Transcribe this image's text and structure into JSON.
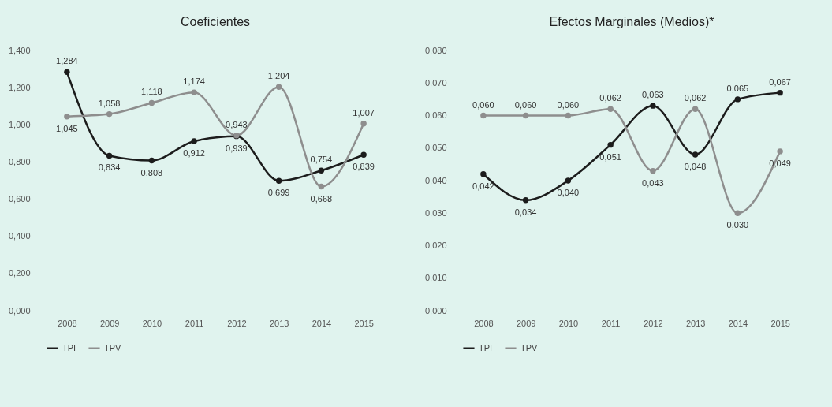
{
  "chart_data": [
    {
      "type": "line",
      "title": "Coeficientes",
      "categories": [
        "2008",
        "2009",
        "2010",
        "2011",
        "2012",
        "2013",
        "2014",
        "2015"
      ],
      "series": [
        {
          "name": "TPI",
          "color": "#1c1c1c",
          "values": [
            1.284,
            0.834,
            0.808,
            0.912,
            0.939,
            0.699,
            0.754,
            0.839
          ],
          "value_labels": [
            "1,284",
            "0,834",
            "0,808",
            "0,912",
            "0,939",
            "0,699",
            "0,754",
            "0,839"
          ]
        },
        {
          "name": "TPV",
          "color": "#8e8e8e",
          "values": [
            1.045,
            1.058,
            1.118,
            1.174,
            0.943,
            1.204,
            0.668,
            1.007
          ],
          "value_labels": [
            "1,045",
            "1,058",
            "1,118",
            "1,174",
            "0,943",
            "1,204",
            "0,668",
            "1,007"
          ]
        }
      ],
      "ylim": [
        0,
        1.4
      ],
      "yticks": [
        {
          "value": 0,
          "label": "0,000"
        },
        {
          "value": 0.2,
          "label": "0,200"
        },
        {
          "value": 0.4,
          "label": "0,400"
        },
        {
          "value": 0.6,
          "label": "0,600"
        },
        {
          "value": 0.8,
          "label": "0,800"
        },
        {
          "value": 1,
          "label": "1,000"
        },
        {
          "value": 1.2,
          "label": "1,200"
        },
        {
          "value": 1.4,
          "label": "1,400"
        }
      ],
      "legend": "bottom",
      "marker": "circle",
      "grid": false
    },
    {
      "type": "line",
      "title": "Efectos Marginales (Medios)*",
      "categories": [
        "2008",
        "2009",
        "2010",
        "2011",
        "2012",
        "2013",
        "2014",
        "2015"
      ],
      "series": [
        {
          "name": "TPI",
          "color": "#1c1c1c",
          "values": [
            0.042,
            0.034,
            0.04,
            0.051,
            0.063,
            0.048,
            0.065,
            0.067
          ],
          "value_labels": [
            "0,042",
            "0,034",
            "0,040",
            "0,051",
            "0,063",
            "0,048",
            "0,065",
            "0,067"
          ]
        },
        {
          "name": "TPV",
          "color": "#8e8e8e",
          "values": [
            0.06,
            0.06,
            0.06,
            0.062,
            0.043,
            0.062,
            0.03,
            0.049
          ],
          "value_labels": [
            "0,060",
            "0,060",
            "0,060",
            "0,062",
            "0,043",
            "0,062",
            "0,030",
            "0,049"
          ]
        }
      ],
      "ylim": [
        0,
        0.08
      ],
      "yticks": [
        {
          "value": 0,
          "label": "0,000"
        },
        {
          "value": 0.01,
          "label": "0,010"
        },
        {
          "value": 0.02,
          "label": "0,020"
        },
        {
          "value": 0.03,
          "label": "0,030"
        },
        {
          "value": 0.04,
          "label": "0,040"
        },
        {
          "value": 0.05,
          "label": "0,050"
        },
        {
          "value": 0.06,
          "label": "0,060"
        },
        {
          "value": 0.07,
          "label": "0,070"
        },
        {
          "value": 0.08,
          "label": "0,080"
        }
      ],
      "legend": "bottom",
      "marker": "circle",
      "grid": false
    }
  ]
}
